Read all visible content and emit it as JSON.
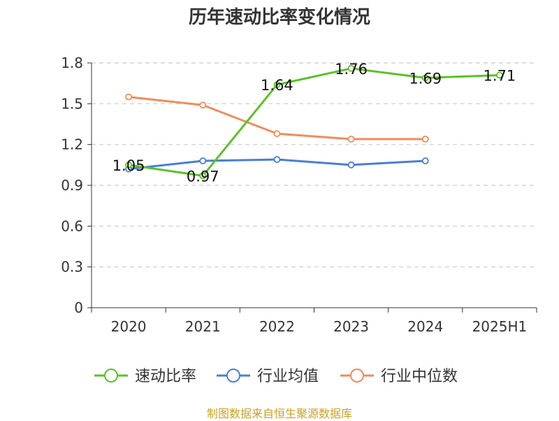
{
  "chart_data": {
    "type": "line",
    "title": "历年速动比率变化情况",
    "categories": [
      "2020",
      "2021",
      "2022",
      "2023",
      "2024",
      "2025H1"
    ],
    "y_ticks": [
      "0",
      "0.3",
      "0.6",
      "0.9",
      "1.2",
      "1.5",
      "1.8"
    ],
    "ylim": [
      0,
      1.8
    ],
    "grid": "horizontal-dashed",
    "legend_position": "bottom",
    "series": [
      {
        "name": "速动比率",
        "color": "#5cc12a",
        "values": [
          1.05,
          0.97,
          1.64,
          1.76,
          1.69,
          1.71
        ],
        "labels": [
          "1.05",
          "0.97",
          "1.64",
          "1.76",
          "1.69",
          "1.71"
        ]
      },
      {
        "name": "行业均值",
        "color": "#4a7fd4",
        "values": [
          1.02,
          1.08,
          1.09,
          1.05,
          1.08,
          null
        ]
      },
      {
        "name": "行业中位数",
        "color": "#f28c5a",
        "values": [
          1.55,
          1.49,
          1.28,
          1.24,
          1.24,
          null
        ]
      }
    ]
  },
  "source_note": "制图数据来自恒生聚源数据库"
}
